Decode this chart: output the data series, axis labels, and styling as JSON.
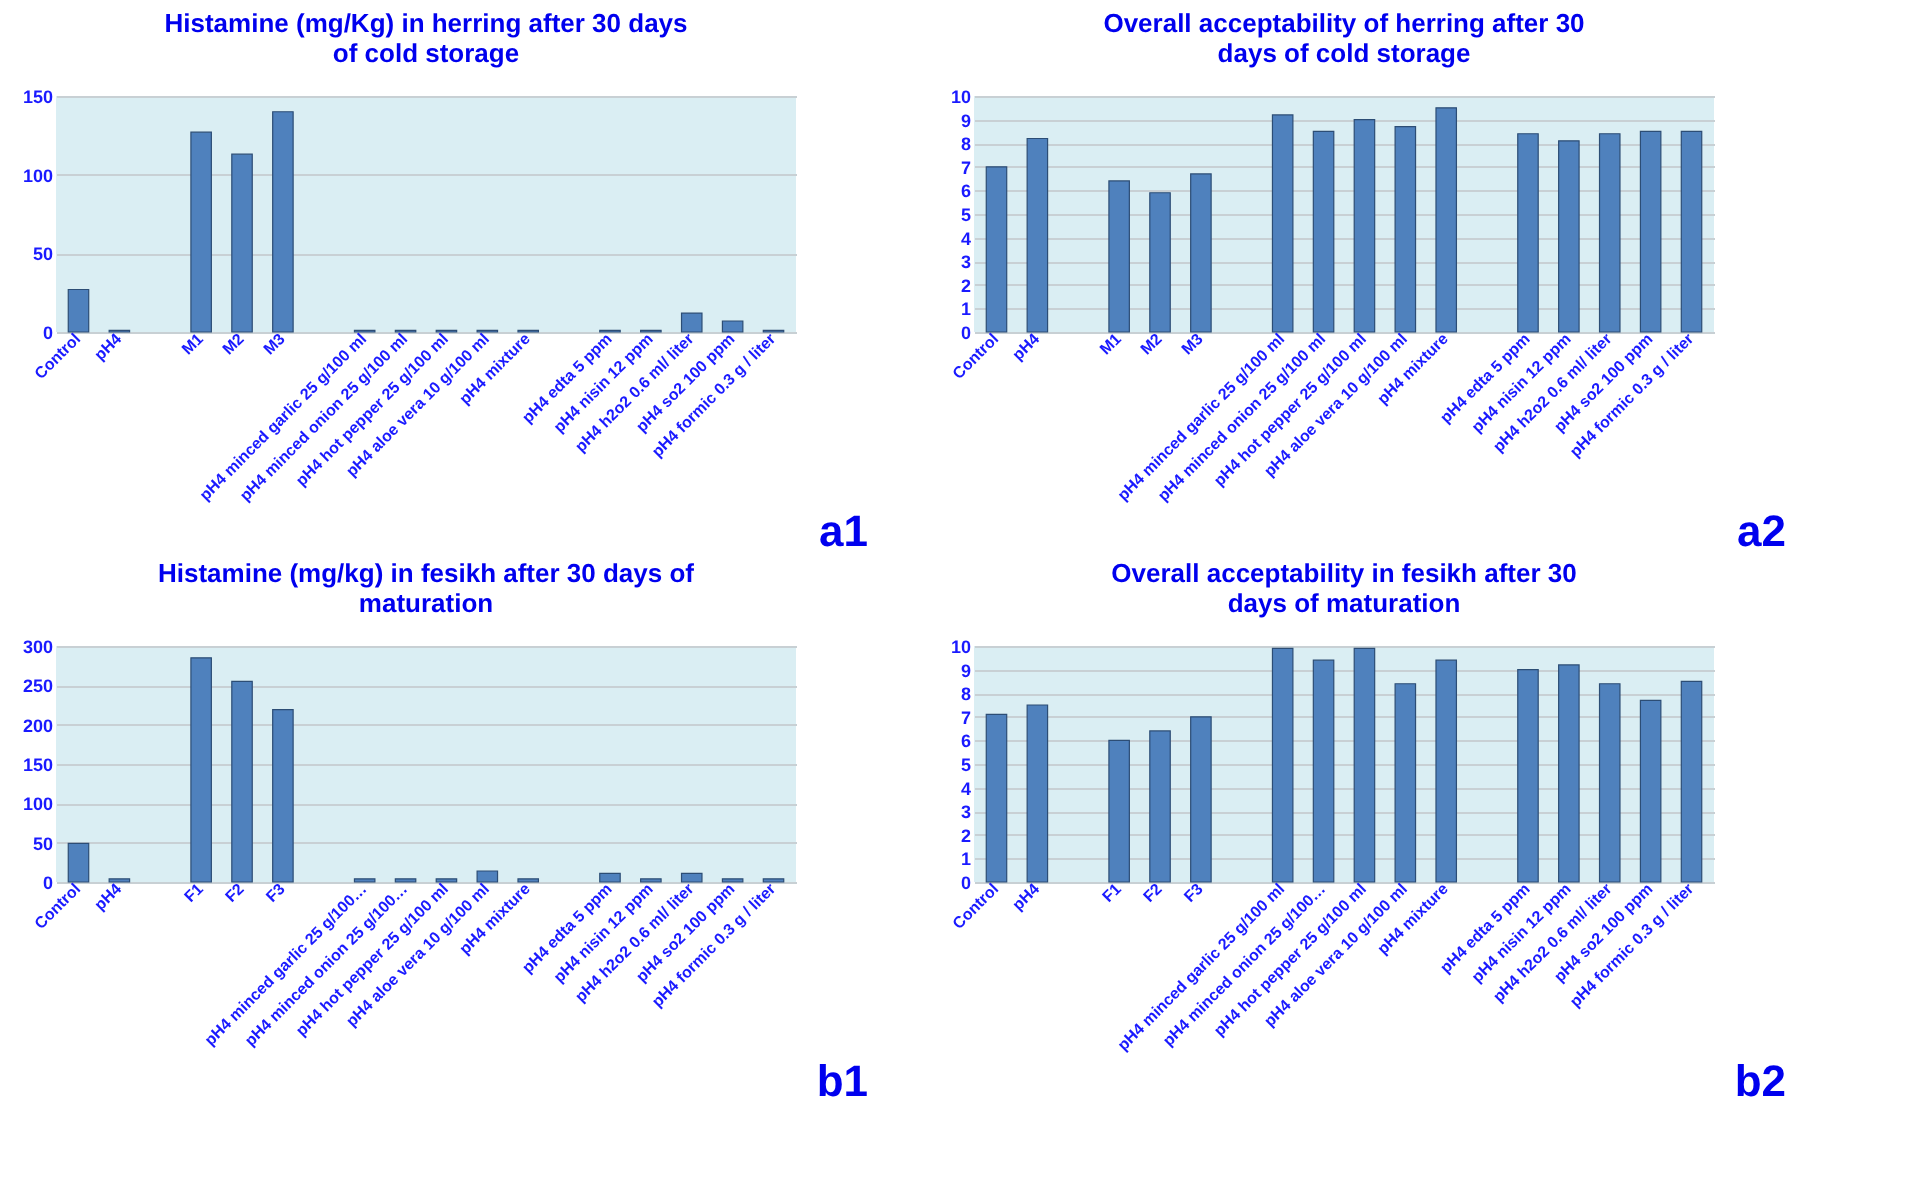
{
  "chart_data": [
    {
      "type": "bar",
      "title": "Histamine (mg/Kg) in herring after 30 days of cold storage",
      "categories": [
        "Control",
        "pH4",
        null,
        "M1",
        "M2",
        "M3",
        null,
        "pH4 minced garlic 25 g/100 ml",
        "pH4 minced onion 25 g/100 ml",
        "pH4 hot pepper 25 g/100 ml",
        "pH4 aloe vera 10 g/100 ml",
        "pH4 mixture",
        null,
        "pH4 edta 5 ppm",
        "pH4 nisin 12 ppm",
        "pH4 h2o2 0.6 ml/ liter",
        "pH4 so2 100 ppm",
        "pH4 formic 0.3 g / liter"
      ],
      "values": [
        27,
        1,
        null,
        127,
        113,
        140,
        null,
        1,
        1,
        1,
        1,
        1,
        null,
        1,
        1,
        12,
        7,
        1
      ],
      "color": "#4f81bd",
      "ylim": [
        0,
        150
      ],
      "yticks": [
        0,
        50,
        100,
        150
      ],
      "grid": "y",
      "annotations": [
        "a1"
      ]
    },
    {
      "type": "bar",
      "title": "Overall acceptability of herring after 30 days of cold storage",
      "categories": [
        "Control",
        "pH4",
        null,
        "M1",
        "M2",
        "M3",
        null,
        "pH4 minced garlic 25 g/100 ml",
        "pH4 minced onion 25 g/100 ml",
        "pH4 hot pepper 25 g/100 ml",
        "pH4 aloe vera 10 g/100 ml",
        "pH4 mixture",
        null,
        "pH4 edta 5 ppm",
        "pH4 nisin 12 ppm",
        "pH4 h2o2 0.6 ml/ liter",
        "pH4 so2 100 ppm",
        "pH4 formic 0.3 g / liter"
      ],
      "values": [
        7.0,
        8.2,
        null,
        6.4,
        5.9,
        6.7,
        null,
        9.2,
        8.5,
        9.0,
        8.7,
        9.5,
        null,
        8.4,
        8.1,
        8.4,
        8.5,
        8.5
      ],
      "color": "#4f81bd",
      "ylim": [
        0,
        10
      ],
      "yticks": [
        0,
        1,
        2,
        3,
        4,
        5,
        6,
        7,
        8,
        9,
        10
      ],
      "grid": "y",
      "annotations": [
        "a2"
      ]
    },
    {
      "type": "bar",
      "title": "Histamine (mg/kg) in fesikh after 30 days of maturation",
      "categories": [
        "Control",
        "pH4",
        null,
        "F1",
        "F2",
        "F3",
        null,
        "pH4 minced garlic 25 g/100…",
        "pH4 minced onion 25 g/100…",
        "pH4 hot pepper 25 g/100 ml",
        "pH4 aloe vera 10 g/100 ml",
        "pH4 mixture",
        null,
        "pH4 edta 5 ppm",
        "pH4 nisin 12 ppm",
        "pH4 h2o2 0.6 ml/ liter",
        "pH4 so2 100 ppm",
        "pH4 formic 0.3 g / liter"
      ],
      "values": [
        49,
        4,
        null,
        285,
        255,
        219,
        null,
        4,
        4,
        4,
        14,
        4,
        null,
        11,
        4,
        11,
        4,
        4
      ],
      "color": "#4f81bd",
      "ylim": [
        0,
        300
      ],
      "yticks": [
        0,
        50,
        100,
        150,
        200,
        250,
        300
      ],
      "grid": "y",
      "annotations": [
        "b1"
      ]
    },
    {
      "type": "bar",
      "title": "Overall acceptability  in fesikh after 30 days of maturation",
      "categories": [
        "Control",
        "pH4",
        null,
        "F1",
        "F2",
        "F3",
        null,
        "pH4 minced garlic 25 g/100 ml",
        "pH4 minced onion 25 g/100…",
        "pH4 hot pepper 25 g/100 ml",
        "pH4 aloe vera 10 g/100 ml",
        "pH4 mixture",
        null,
        "pH4 edta 5 ppm",
        "pH4 nisin 12 ppm",
        "pH4 h2o2 0.6 ml/ liter",
        "pH4 so2 100 ppm",
        "pH4 formic 0.3 g / liter"
      ],
      "values": [
        7.1,
        7.5,
        null,
        6.0,
        6.4,
        7.0,
        null,
        9.9,
        9.4,
        9.9,
        8.4,
        9.4,
        null,
        9.0,
        9.2,
        8.4,
        7.7,
        8.5
      ],
      "color": "#4f81bd",
      "ylim": [
        0,
        10
      ],
      "yticks": [
        0,
        1,
        2,
        3,
        4,
        5,
        6,
        7,
        8,
        9,
        10
      ],
      "grid": "y",
      "annotations": [
        "b2"
      ]
    }
  ]
}
